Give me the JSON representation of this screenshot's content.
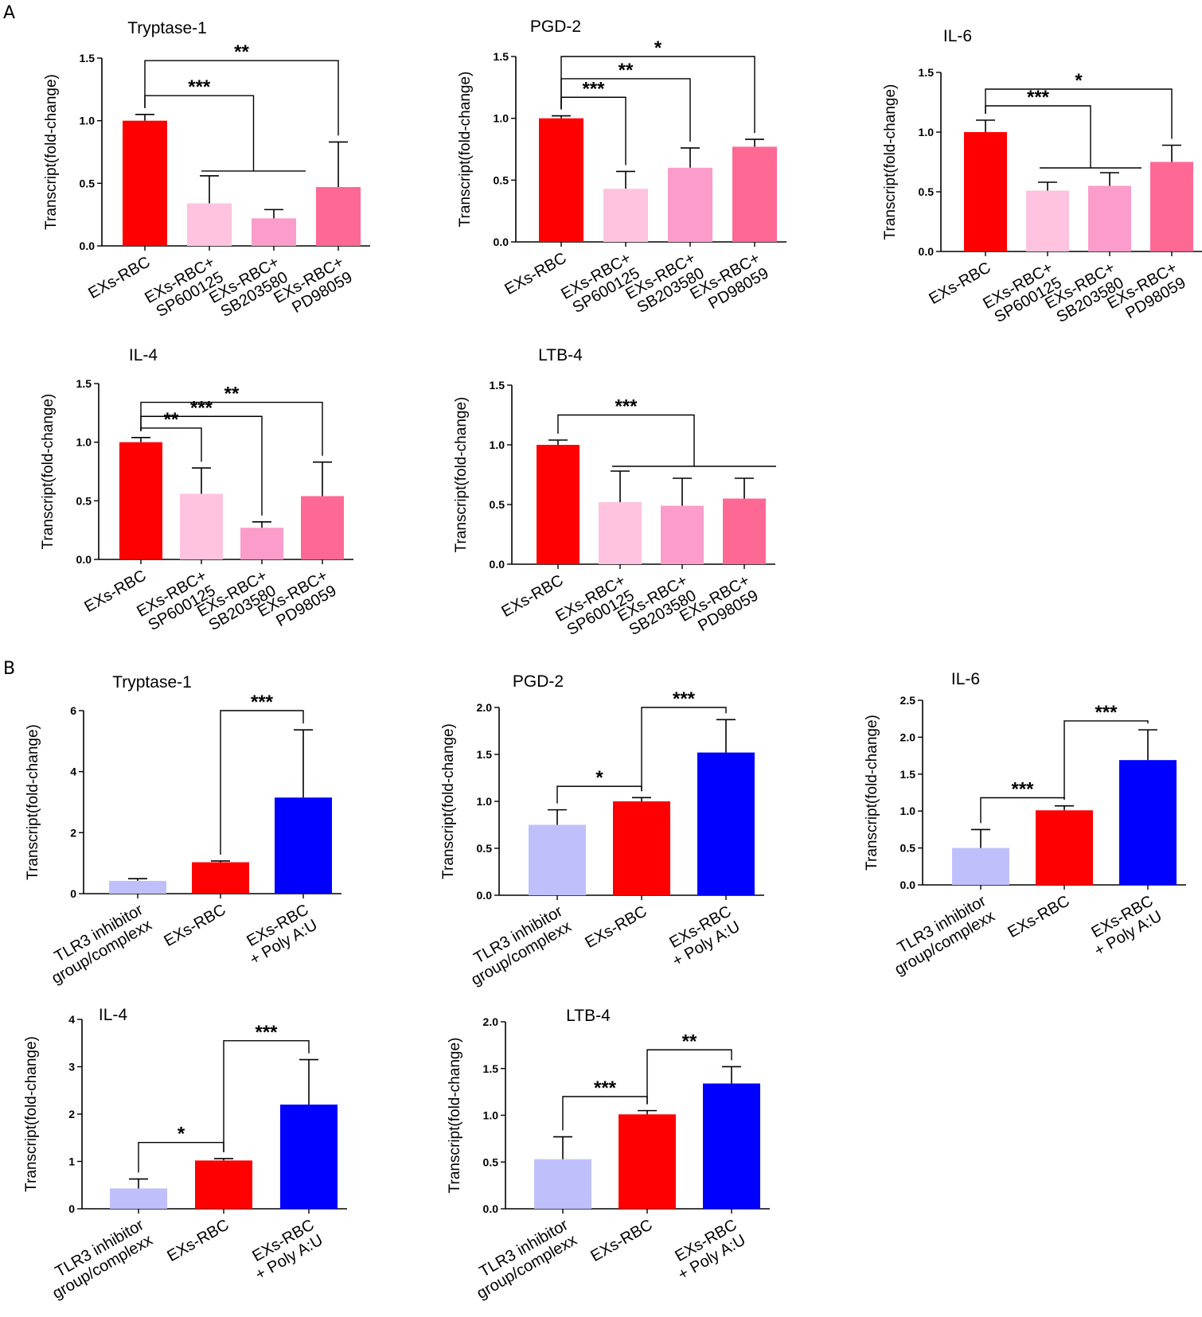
{
  "figure": {
    "panel_labels": [
      "A",
      "B"
    ]
  },
  "chart_data": [
    {
      "type": "bar",
      "panel": "A",
      "title": "Tryptase-1",
      "ylabel": "Transcript(fold-change)",
      "ylim": [
        0,
        1.5
      ],
      "yticks": [
        "0.0",
        "0.5",
        "1.0",
        "1.5"
      ],
      "categories": [
        [
          "EXs-RBC"
        ],
        [
          "EXs-RBC+",
          "SP600125"
        ],
        [
          "EXs-RBC+",
          "SB203580"
        ],
        [
          "EXs-RBC+",
          "PD98059"
        ]
      ],
      "values": [
        1.0,
        0.34,
        0.22,
        0.47
      ],
      "errors": [
        0.05,
        0.22,
        0.07,
        0.36
      ],
      "colors": [
        "#ff0000",
        "#ffc3e0",
        "#fb9ccb",
        "#fe6895"
      ],
      "significance": [
        {
          "type": "multi",
          "from": 0,
          "to": [
            1,
            2
          ],
          "label": "***",
          "y": 1.2
        },
        {
          "type": "single",
          "from": 0,
          "to": [
            3
          ],
          "label": "**",
          "y": 1.48
        }
      ]
    },
    {
      "type": "bar",
      "panel": "A",
      "title": "PGD-2",
      "ylabel": "Transcript(fold-change)",
      "ylim": [
        0,
        1.5
      ],
      "yticks": [
        "0.0",
        "0.5",
        "1.0",
        "1.5"
      ],
      "categories": [
        [
          "EXs-RBC"
        ],
        [
          "EXs-RBC+",
          "SP600125"
        ],
        [
          "EXs-RBC+",
          "SB203580"
        ],
        [
          "EXs-RBC+",
          "PD98059"
        ]
      ],
      "values": [
        1.0,
        0.43,
        0.6,
        0.77
      ],
      "errors": [
        0.02,
        0.14,
        0.16,
        0.06
      ],
      "colors": [
        "#ff0000",
        "#ffc3e0",
        "#fb9ccb",
        "#fe6895"
      ],
      "significance": [
        {
          "type": "single",
          "from": 0,
          "to": [
            1
          ],
          "label": "***",
          "y": 1.17
        },
        {
          "type": "single",
          "from": 0,
          "to": [
            2
          ],
          "label": "**",
          "y": 1.32
        },
        {
          "type": "single",
          "from": 0,
          "to": [
            3
          ],
          "label": "*",
          "y": 1.5
        }
      ]
    },
    {
      "type": "bar",
      "panel": "A",
      "title": "IL-6",
      "ylabel": "Transcript(fold-change)",
      "ylim": [
        0,
        1.5
      ],
      "yticks": [
        "0.0",
        "0.5",
        "1.0",
        "1.5"
      ],
      "categories": [
        [
          "EXs-RBC"
        ],
        [
          "EXs-RBC+",
          "SP600125"
        ],
        [
          "EXs-RBC+",
          "SB203580"
        ],
        [
          "EXs-RBC+",
          "PD98059"
        ]
      ],
      "values": [
        1.0,
        0.51,
        0.55,
        0.75
      ],
      "errors": [
        0.1,
        0.07,
        0.11,
        0.14
      ],
      "colors": [
        "#ff0000",
        "#ffc3e0",
        "#fb9ccb",
        "#fe6895"
      ],
      "significance": [
        {
          "type": "multi",
          "from": 0,
          "to": [
            1,
            2
          ],
          "label": "***",
          "y": 1.22
        },
        {
          "type": "single",
          "from": 0,
          "to": [
            3
          ],
          "label": "*",
          "y": 1.36
        }
      ]
    },
    {
      "type": "bar",
      "panel": "A",
      "title": "IL-4",
      "ylabel": "Transcript(fold-change)",
      "ylim": [
        0,
        1.5
      ],
      "yticks": [
        "0.0",
        "0.5",
        "1.0",
        "1.5"
      ],
      "categories": [
        [
          "EXs-RBC"
        ],
        [
          "EXs-RBC+",
          "SP600125"
        ],
        [
          "EXs-RBC+",
          "SB203580"
        ],
        [
          "EXs-RBC+",
          "PD98059"
        ]
      ],
      "values": [
        1.0,
        0.56,
        0.27,
        0.54
      ],
      "errors": [
        0.04,
        0.22,
        0.05,
        0.29
      ],
      "colors": [
        "#ff0000",
        "#ffc3e0",
        "#fb9ccb",
        "#fe6895"
      ],
      "significance": [
        {
          "type": "single",
          "from": 0,
          "to": [
            1
          ],
          "label": "**",
          "y": 1.12
        },
        {
          "type": "single",
          "from": 0,
          "to": [
            2
          ],
          "label": "***",
          "y": 1.22
        },
        {
          "type": "single",
          "from": 0,
          "to": [
            3
          ],
          "label": "**",
          "y": 1.34
        }
      ]
    },
    {
      "type": "bar",
      "panel": "A",
      "title": "LTB-4",
      "ylabel": "Transcript(fold-change)",
      "ylim": [
        0,
        1.5
      ],
      "yticks": [
        "0.0",
        "0.5",
        "1.0",
        "1.5"
      ],
      "categories": [
        [
          "EXs-RBC"
        ],
        [
          "EXs-RBC+",
          "SP600125"
        ],
        [
          "EXs-RBC+",
          "SB203580"
        ],
        [
          "EXs-RBC+",
          "PD98059"
        ]
      ],
      "values": [
        1.0,
        0.52,
        0.49,
        0.55
      ],
      "errors": [
        0.04,
        0.26,
        0.23,
        0.17
      ],
      "colors": [
        "#ff0000",
        "#ffc3e0",
        "#fb9ccb",
        "#fe6895"
      ],
      "significance": [
        {
          "type": "multi",
          "from": 0,
          "to": [
            1,
            3
          ],
          "label": "***",
          "y": 1.25
        }
      ]
    },
    {
      "type": "bar",
      "panel": "B",
      "title": "Tryptase-1",
      "ylabel": "Transcript(fold-change)",
      "ylim": [
        0,
        6
      ],
      "yticks": [
        "0",
        "2",
        "4",
        "6"
      ],
      "categories": [
        [
          "TLR3 inhibitor",
          "group/complexx"
        ],
        [
          "EXs-RBC"
        ],
        [
          "EXs-RBC",
          "+ Poly A:U"
        ]
      ],
      "values": [
        0.42,
        1.03,
        3.15
      ],
      "errors": [
        0.07,
        0.04,
        2.22
      ],
      "colors": [
        "#bfc0fb",
        "#ff0000",
        "#0000ff"
      ],
      "significance": [
        {
          "type": "single",
          "from": 1,
          "to": [
            2
          ],
          "label": "***",
          "y": 6.0
        }
      ]
    },
    {
      "type": "bar",
      "panel": "B",
      "title": "PGD-2",
      "ylabel": "Transcript(fold-change)",
      "ylim": [
        0,
        2.0
      ],
      "yticks": [
        "0.0",
        "0.5",
        "1.0",
        "1.5",
        "2.0"
      ],
      "categories": [
        [
          "TLR3 inhibitor",
          "group/complexx"
        ],
        [
          "EXs-RBC"
        ],
        [
          "EXs-RBC",
          "+ Poly A:U"
        ]
      ],
      "values": [
        0.75,
        1.0,
        1.52
      ],
      "errors": [
        0.16,
        0.04,
        0.35
      ],
      "colors": [
        "#bfc0fb",
        "#ff0000",
        "#0000ff"
      ],
      "significance": [
        {
          "type": "single",
          "from": 0,
          "to": [
            1
          ],
          "label": "*",
          "y": 1.16
        },
        {
          "type": "single",
          "from": 1,
          "to": [
            2
          ],
          "label": "***",
          "y": 2.0
        }
      ]
    },
    {
      "type": "bar",
      "panel": "B",
      "title": "IL-6",
      "ylabel": "Transcript(fold-change)",
      "ylim": [
        0,
        2.5
      ],
      "yticks": [
        "0.0",
        "0.5",
        "1.0",
        "1.5",
        "2.0",
        "2.5"
      ],
      "categories": [
        [
          "TLR3 inhibitor",
          "group/complexx"
        ],
        [
          "EXs-RBC"
        ],
        [
          "EXs-RBC",
          "+ Poly A:U"
        ]
      ],
      "values": [
        0.5,
        1.01,
        1.69
      ],
      "errors": [
        0.25,
        0.06,
        0.41
      ],
      "colors": [
        "#bfc0fb",
        "#ff0000",
        "#0000ff"
      ],
      "significance": [
        {
          "type": "single",
          "from": 0,
          "to": [
            1
          ],
          "label": "***",
          "y": 1.18
        },
        {
          "type": "single",
          "from": 1,
          "to": [
            2
          ],
          "label": "***",
          "y": 2.22
        }
      ]
    },
    {
      "type": "bar",
      "panel": "B",
      "title": "IL-4",
      "ylabel": "Transcript(fold-change)",
      "ylim": [
        0,
        4
      ],
      "yticks": [
        "0",
        "1",
        "2",
        "3",
        "4"
      ],
      "categories": [
        [
          "TLR3 inhibitor",
          "group/complexx"
        ],
        [
          "EXs-RBC"
        ],
        [
          "EXs-RBC",
          "+ Poly A:U"
        ]
      ],
      "values": [
        0.43,
        1.02,
        2.2
      ],
      "errors": [
        0.2,
        0.04,
        0.95
      ],
      "colors": [
        "#bfc0fb",
        "#ff0000",
        "#0000ff"
      ],
      "significance": [
        {
          "type": "single",
          "from": 0,
          "to": [
            1
          ],
          "label": "*",
          "y": 1.4
        },
        {
          "type": "single",
          "from": 1,
          "to": [
            2
          ],
          "label": "***",
          "y": 3.55
        }
      ]
    },
    {
      "type": "bar",
      "panel": "B",
      "title": "LTB-4",
      "ylabel": "Transcript(fold-change)",
      "ylim": [
        0,
        2.0
      ],
      "yticks": [
        "0.0",
        "0.5",
        "1.0",
        "1.5",
        "2.0"
      ],
      "categories": [
        [
          "TLR3 inhibitor",
          "group/complexx"
        ],
        [
          "EXs-RBC"
        ],
        [
          "EXs-RBC",
          "+ Poly A:U"
        ]
      ],
      "values": [
        0.53,
        1.01,
        1.34
      ],
      "errors": [
        0.24,
        0.04,
        0.18
      ],
      "colors": [
        "#bfc0fb",
        "#ff0000",
        "#0000ff"
      ],
      "significance": [
        {
          "type": "single",
          "from": 0,
          "to": [
            1
          ],
          "label": "***",
          "y": 1.2
        },
        {
          "type": "single",
          "from": 1,
          "to": [
            2
          ],
          "label": "**",
          "y": 1.7
        }
      ]
    }
  ]
}
